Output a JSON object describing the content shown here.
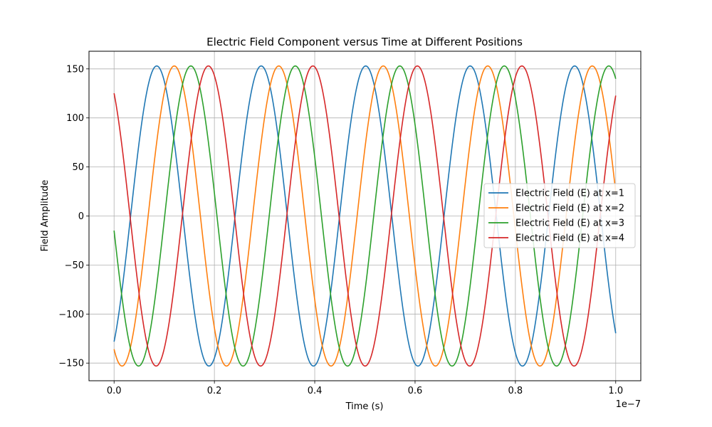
{
  "chart_data": {
    "type": "line",
    "title": "Electric Field Component versus Time at Different Positions",
    "xlabel": "Time (s)",
    "ylabel": "Field Amplitude",
    "x_offset_label": "1e−7",
    "xlim": [
      -0.05,
      1.05
    ],
    "ylim": [
      -168,
      168
    ],
    "x_unit_scale": 1e-07,
    "x_ticks": [
      0.0,
      0.2,
      0.4,
      0.6,
      0.8,
      1.0
    ],
    "x_tick_labels": [
      "0.0",
      "0.2",
      "0.4",
      "0.6",
      "0.8",
      "1.0"
    ],
    "y_ticks": [
      -150,
      -100,
      -50,
      0,
      50,
      100,
      150
    ],
    "y_tick_labels": [
      "−150",
      "−100",
      "−50",
      "0",
      "50",
      "100",
      "150"
    ],
    "grid": true,
    "legend_position": "center-right",
    "amplitude": 153,
    "period": 0.2083,
    "series": [
      {
        "name": "Electric Field (E) at x=1",
        "color": "#1f77b4",
        "y_start": -130,
        "y_end": -102,
        "first_peak_x": 0.085
      },
      {
        "name": "Electric Field (E) at x=2",
        "color": "#ff7f0e",
        "y_start": -138,
        "y_end": 41,
        "first_peak_x": 0.12
      },
      {
        "name": "Electric Field (E) at x=3",
        "color": "#2ca02c",
        "y_start": -22,
        "y_end": 146,
        "first_peak_x": 0.153
      },
      {
        "name": "Electric Field (E) at x=4",
        "color": "#d62728",
        "y_start": 116,
        "y_end": 117,
        "first_peak_x": 0.188
      }
    ]
  }
}
